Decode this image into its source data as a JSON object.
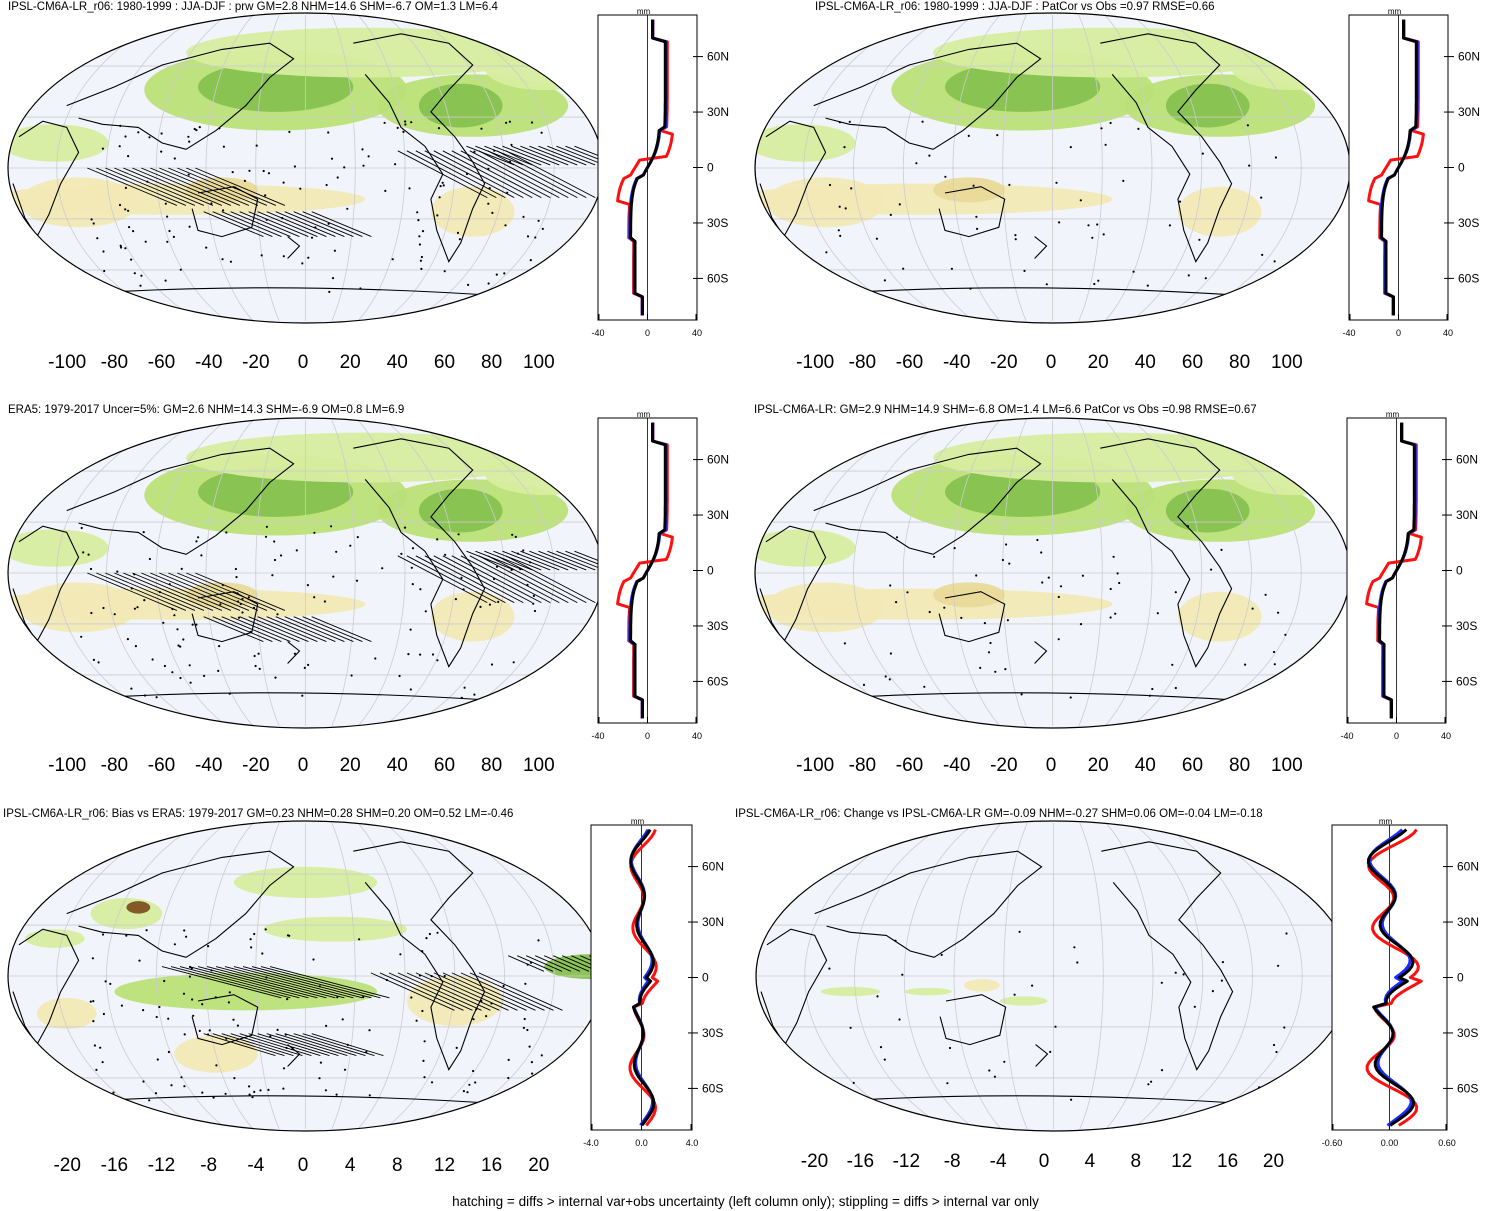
{
  "footer": "hatching = diffs > internal var+obs uncertainty (left column only); stippling = diffs > internal var only",
  "profile_unit": "mm",
  "lat_labels": [
    "60N",
    "30N",
    "0",
    "30S",
    "60S"
  ],
  "colors": {
    "palette": [
      "#5a3b17",
      "#7d5020",
      "#a06c2a",
      "#c5a13a",
      "#dcc26a",
      "#e9da99",
      "#f1e9b5",
      "#f6f2cf",
      "#ffffff",
      "#f2f4fb",
      "#d7eda0",
      "#b9e077",
      "#9fd05f",
      "#86c14f",
      "#6caf43",
      "#539939",
      "#3e7f2e",
      "#2e6a26",
      "#8cc6ee",
      "#2f7dc6"
    ],
    "ocean": "#f2f4fb",
    "grid": "#cccccc",
    "model_line": "#000000",
    "obs_line": "#ff1010",
    "ref_line": "#1a2bff"
  },
  "panels": [
    {
      "id": "top-left",
      "title": "IPSL-CM6A-LR_r06: 1980-1999 : JJA-DJF : prw GM=2.8 NHM=14.6 SHM=-6.7 OM=1.3 LM=6.4",
      "profile_ticks": [
        "-40",
        "0",
        "40"
      ],
      "colorbar_labels": [
        "-100",
        "-80",
        "-60",
        "-40",
        "-20",
        "0",
        "20",
        "40",
        "60",
        "80",
        "100"
      ],
      "hatched": true
    },
    {
      "id": "top-right",
      "title": "IPSL-CM6A-LR_r06: 1980-1999 : JJA-DJF : PatCor vs Obs =0.97 RMSE=0.66",
      "profile_ticks": [
        "-40",
        "0",
        "40"
      ],
      "colorbar_labels": [
        "-100",
        "-80",
        "-60",
        "-40",
        "-20",
        "0",
        "20",
        "40",
        "60",
        "80",
        "100"
      ],
      "hatched": false
    },
    {
      "id": "middle-left",
      "title": "ERA5: 1979-2017 Uncer=5%: GM=2.6 NHM=14.3 SHM=-6.9 OM=0.8 LM=6.9",
      "profile_ticks": [
        "-40",
        "0",
        "40"
      ],
      "colorbar_labels": [
        "-100",
        "-80",
        "-60",
        "-40",
        "-20",
        "0",
        "20",
        "40",
        "60",
        "80",
        "100"
      ],
      "hatched": true
    },
    {
      "id": "middle-right",
      "title": "IPSL-CM6A-LR: GM=2.9 NHM=14.9 SHM=-6.8 OM=1.4 LM=6.6 PatCor vs Obs =0.98 RMSE=0.67",
      "profile_ticks": [
        "-40",
        "0",
        "40"
      ],
      "colorbar_labels": [
        "-100",
        "-80",
        "-60",
        "-40",
        "-20",
        "0",
        "20",
        "40",
        "60",
        "80",
        "100"
      ],
      "hatched": false
    },
    {
      "id": "bottom-left",
      "title": "IPSL-CM6A-LR_r06: Bias vs ERA5: 1979-2017 GM=0.23 NHM=0.28 SHM=0.20 OM=0.52 LM=-0.46",
      "profile_ticks": [
        "-4.0",
        "0.0",
        "4.0"
      ],
      "colorbar_labels": [
        "-20",
        "-16",
        "-12",
        "-8",
        "-4",
        "0",
        "4",
        "8",
        "12",
        "16",
        "20"
      ],
      "hatched": true
    },
    {
      "id": "bottom-right",
      "title": "IPSL-CM6A-LR_r06: Change vs IPSL-CM6A-LR GM=-0.09 NHM=-0.27 SHM=0.06 OM=-0.04 LM=-0.18",
      "profile_ticks": [
        "-0.60",
        "0.00",
        "0.60"
      ],
      "colorbar_labels": [
        "-20",
        "-16",
        "-12",
        "-8",
        "-4",
        "0",
        "4",
        "8",
        "12",
        "16",
        "20"
      ],
      "hatched": false
    }
  ]
}
